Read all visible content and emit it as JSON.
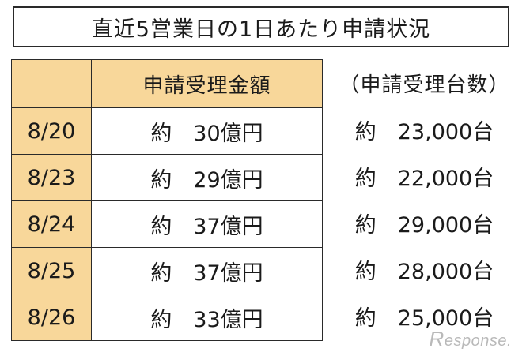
{
  "title": "直近5営業日の1日あたり申請状況",
  "table": {
    "header_amount": "申請受理金額",
    "header_count": "（申請受理台数）",
    "rows": [
      {
        "date": "8/20",
        "amount": "約　30億円",
        "count": "約　23,000台"
      },
      {
        "date": "8/23",
        "amount": "約　29億円",
        "count": "約　22,000台"
      },
      {
        "date": "8/24",
        "amount": "約　37億円",
        "count": "約　29,000台"
      },
      {
        "date": "8/25",
        "amount": "約　37億円",
        "count": "約　28,000台"
      },
      {
        "date": "8/26",
        "amount": "約　33億円",
        "count": "約　25,000台"
      }
    ]
  },
  "watermark": "Response.",
  "colors": {
    "header_fill": "#f8d79a",
    "border": "#2a2a2a"
  }
}
